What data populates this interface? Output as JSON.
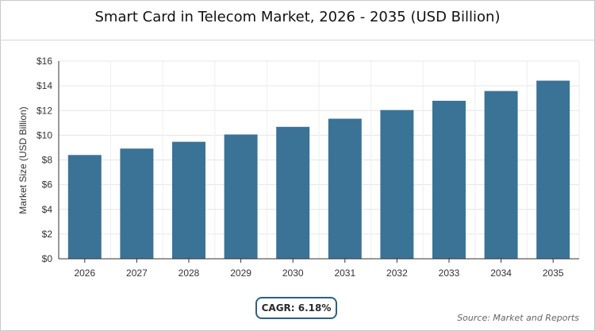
{
  "page": {
    "title": "Smart Card in Telecom Market, 2026 - 2035 (USD Billion)",
    "cagr_label": "CAGR: 6.18%",
    "source": "Source: Market and Reports"
  },
  "chart_data": {
    "type": "bar",
    "title": "Smart Card in Telecom Market, 2026 - 2035 (USD Billion)",
    "xlabel": "",
    "ylabel": "Market Size (USD Billion)",
    "categories": [
      "2026",
      "2027",
      "2028",
      "2029",
      "2030",
      "2031",
      "2032",
      "2033",
      "2034",
      "2035"
    ],
    "values": [
      8.4,
      8.92,
      9.47,
      10.06,
      10.68,
      11.34,
      12.04,
      12.79,
      13.58,
      14.42
    ],
    "ylim": [
      0,
      16
    ],
    "yticks": [
      0,
      2,
      4,
      6,
      8,
      10,
      12,
      14,
      16
    ],
    "ytick_labels": [
      "$0",
      "$2",
      "$4",
      "$6",
      "$8",
      "$10",
      "$12",
      "$14",
      "$16"
    ],
    "grid": true,
    "legend": "none",
    "colors": {
      "bar": "#3b7397",
      "grid": "#e6e6e6",
      "axis": "#333333"
    }
  }
}
